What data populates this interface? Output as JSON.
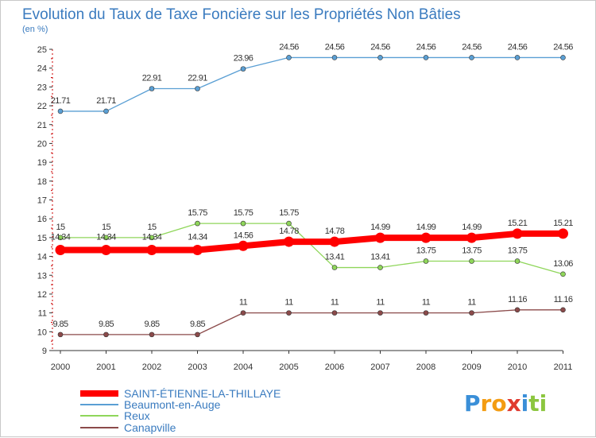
{
  "chart_data": {
    "type": "line",
    "title": "Evolution du Taux de Taxe Foncière sur les Propriétés Non Bâties",
    "ylabel": "(en %)",
    "xlabel": "",
    "x": [
      "2000",
      "2001",
      "2002",
      "2003",
      "2004",
      "2005",
      "2006",
      "2007",
      "2008",
      "2009",
      "2010",
      "2011"
    ],
    "ylim": [
      9,
      25
    ],
    "yticks": [
      9,
      10,
      11,
      12,
      13,
      14,
      15,
      16,
      17,
      18,
      19,
      20,
      21,
      22,
      23,
      24,
      25
    ],
    "grid": false,
    "legend_position": "bottom-left",
    "series": [
      {
        "name": "SAINT-ÉTIENNE-LA-THILLAYE",
        "color": "#ff0000",
        "values": [
          14.34,
          14.34,
          14.34,
          14.34,
          14.56,
          14.78,
          14.78,
          14.99,
          14.99,
          14.99,
          15.21,
          15.21
        ],
        "labels": [
          "14.34",
          "14.34",
          "14.34",
          "14.34",
          "14.56",
          "14.78",
          "14.78",
          "14.99",
          "14.99",
          "14.99",
          "15.21",
          "15.21"
        ]
      },
      {
        "name": "Beaumont-en-Auge",
        "color": "#5a9fd4",
        "values": [
          21.71,
          21.71,
          22.91,
          22.91,
          23.96,
          24.56,
          24.56,
          24.56,
          24.56,
          24.56,
          24.56,
          24.56
        ],
        "labels": [
          "21.71",
          "21.71",
          "22.91",
          "22.91",
          "23.96",
          "24.56",
          "24.56",
          "24.56",
          "24.56",
          "24.56",
          "24.56",
          "24.56"
        ]
      },
      {
        "name": "Reux",
        "color": "#8fd65a",
        "values": [
          15,
          15,
          15,
          15.75,
          15.75,
          15.75,
          13.41,
          13.41,
          13.75,
          13.75,
          13.75,
          13.06
        ],
        "labels": [
          "15",
          "15",
          "15",
          "15.75",
          "15.75",
          "15.75",
          "13.41",
          "13.41",
          "13.75",
          "13.75",
          "13.75",
          "13.06"
        ]
      },
      {
        "name": "Canapville",
        "color": "#8b4a4a",
        "values": [
          9.85,
          9.85,
          9.85,
          9.85,
          11,
          11,
          11,
          11,
          11,
          11,
          11.16,
          11.16
        ],
        "labels": [
          "9.85",
          "9.85",
          "9.85",
          "9.85",
          "11",
          "11",
          "11",
          "11",
          "11",
          "11",
          "11.16",
          "11.16"
        ]
      }
    ]
  },
  "logo": {
    "text": "Proxiti",
    "letters": [
      {
        "ch": "P",
        "color": "#3a8fd8"
      },
      {
        "ch": "r",
        "color": "#f39c12"
      },
      {
        "ch": "o",
        "color": "#f39c12"
      },
      {
        "ch": "x",
        "color": "#e03a2f"
      },
      {
        "ch": "i",
        "color": "#3a8fd8"
      },
      {
        "ch": "t",
        "color": "#8cc63f"
      },
      {
        "ch": "i",
        "color": "#8cc63f"
      }
    ]
  }
}
